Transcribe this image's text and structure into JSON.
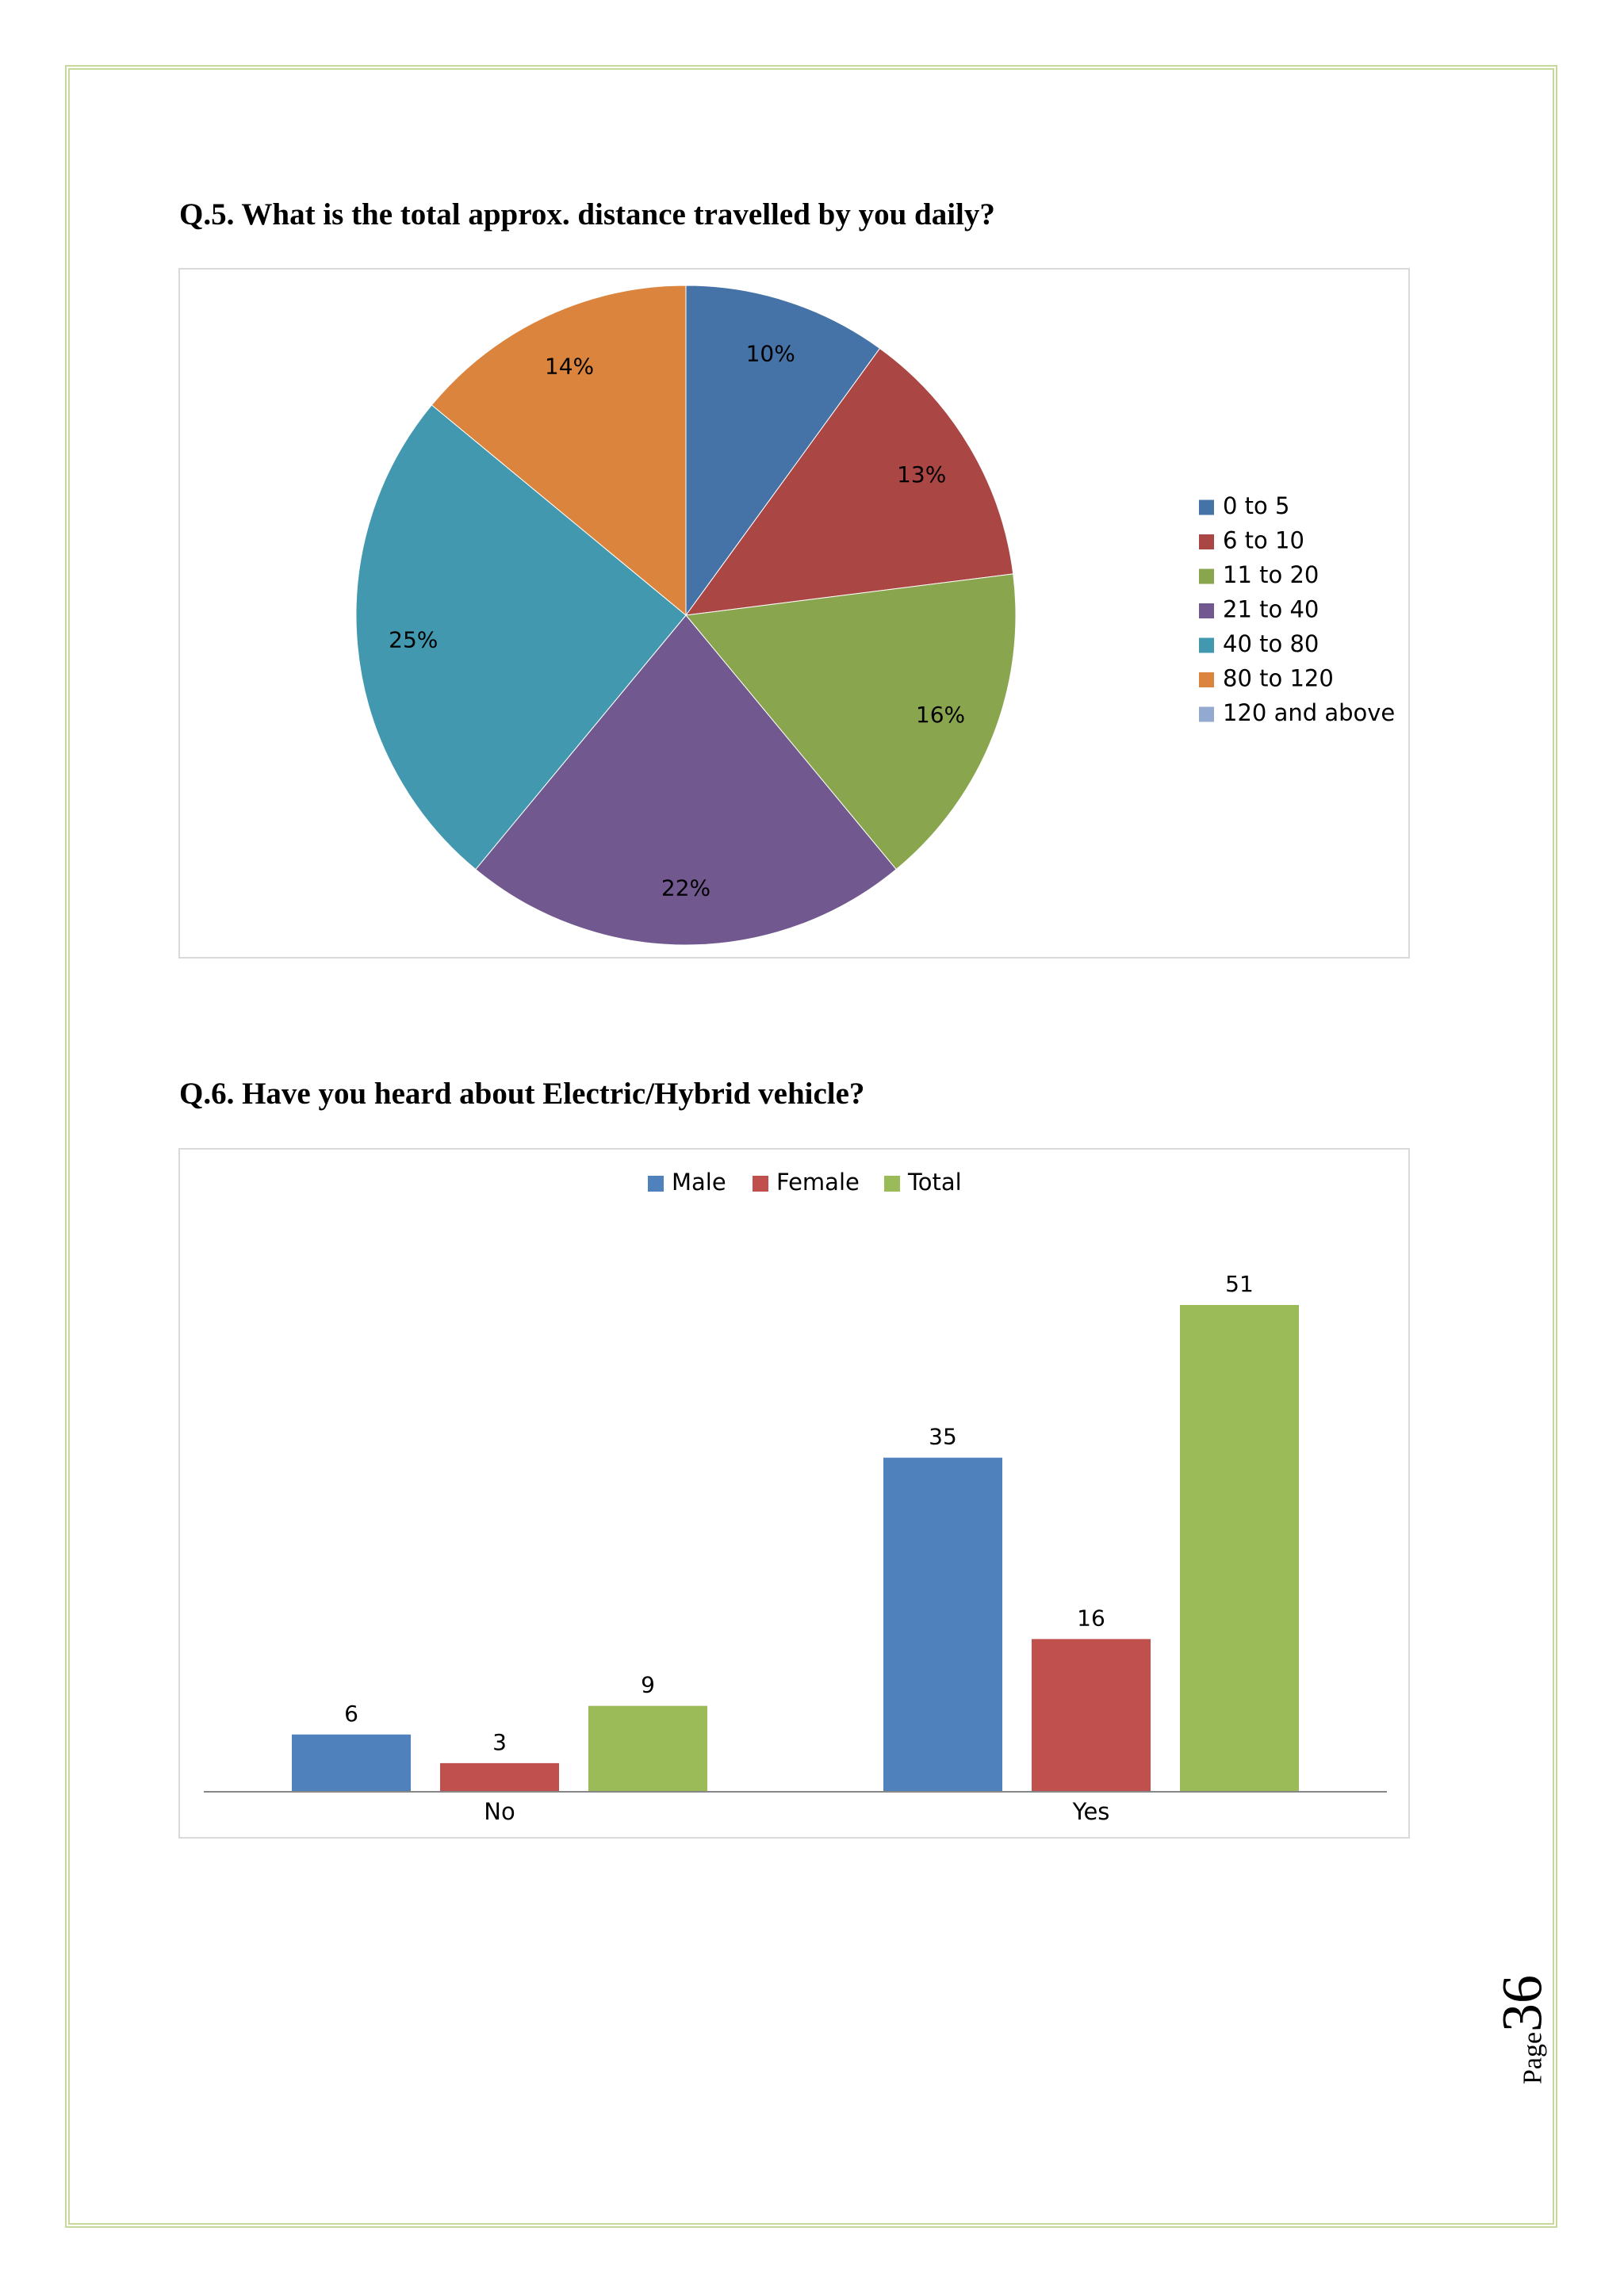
{
  "page": {
    "border_color": "#c6d99b",
    "number_prefix": "Page",
    "number": "36"
  },
  "q5": {
    "question": "Q.5. What is the total approx. distance travelled by you daily?"
  },
  "q6": {
    "question": "Q.6. Have you heard about Electric/Hybrid vehicle?"
  },
  "chart_data": [
    {
      "type": "pie",
      "title": "",
      "categories": [
        "0 to 5",
        "6 to 10",
        "11 to 20",
        "21 to 40",
        "40 to 80",
        "80 to 120",
        "120 and above"
      ],
      "values": [
        10,
        13,
        16,
        22,
        25,
        14,
        0
      ],
      "data_labels": [
        "10%",
        "13%",
        "16%",
        "22%",
        "25%",
        "14%",
        ""
      ],
      "colors": [
        "#4572a7",
        "#aa4643",
        "#89a54e",
        "#71588f",
        "#4198af",
        "#db843d",
        "#93a9cf"
      ],
      "legend": "right"
    },
    {
      "type": "bar",
      "title": "",
      "categories": [
        "No",
        "Yes"
      ],
      "series": [
        {
          "name": "Male",
          "values": [
            6,
            35
          ],
          "color": "#4f81bd"
        },
        {
          "name": "Female",
          "values": [
            3,
            16
          ],
          "color": "#c0504d"
        },
        {
          "name": "Total",
          "values": [
            9,
            51
          ],
          "color": "#9bbb59"
        }
      ],
      "ylim": [
        0,
        51
      ],
      "grid": false,
      "legend": "top"
    }
  ]
}
